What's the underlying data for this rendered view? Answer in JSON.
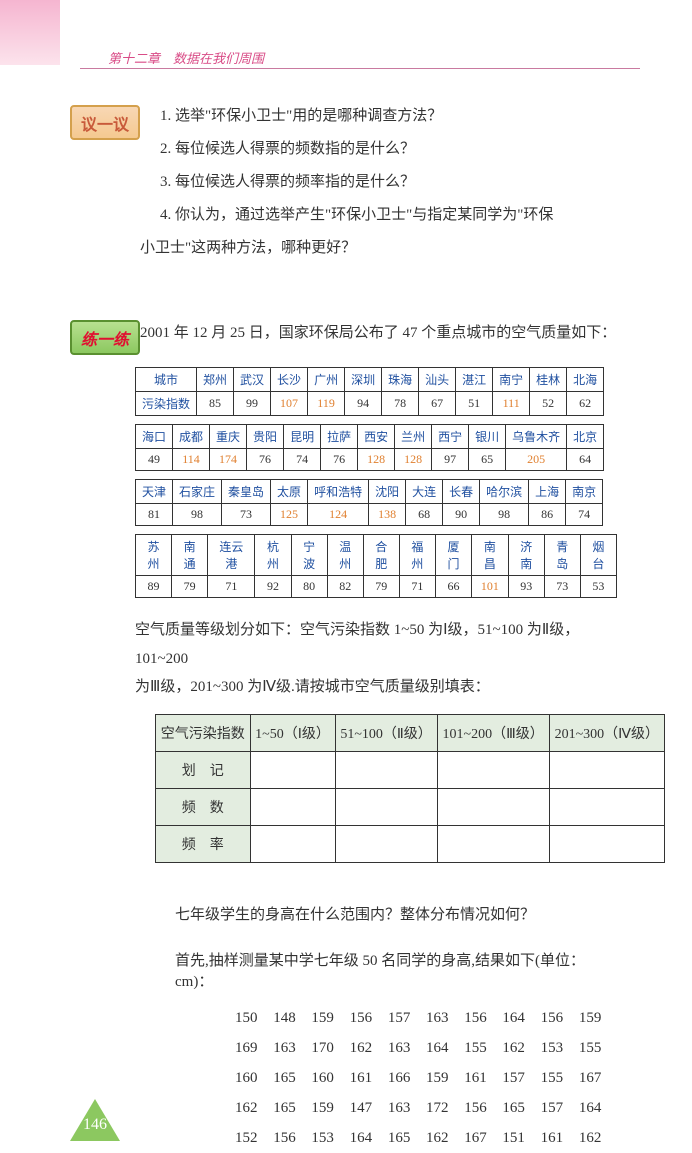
{
  "header": {
    "chapter": "第十二章　数据在我们周围"
  },
  "badges": {
    "discuss": "议一议",
    "practice": "练一练"
  },
  "questions": {
    "q1": "1. 选举\"环保小卫士\"用的是哪种调查方法？",
    "q2": "2. 每位候选人得票的频数指的是什么？",
    "q3": "3. 每位候选人得票的频率指的是什么？",
    "q4a": "4. 你认为，通过选举产生\"环保小卫士\"与指定某同学为\"环保",
    "q4b": "小卫士\"这两种方法，哪种更好？"
  },
  "intro": "2001 年 12 月 25 日，国家环保局公布了 47 个重点城市的空气质量如下：",
  "row_labels": {
    "city": "城市",
    "index": "污染指数"
  },
  "table1": {
    "cities": [
      "郑州",
      "武汉",
      "长沙",
      "广州",
      "深圳",
      "珠海",
      "汕头",
      "湛江",
      "南宁",
      "桂林",
      "北海"
    ],
    "values": [
      "85",
      "99",
      "107",
      "119",
      "94",
      "78",
      "67",
      "51",
      "111",
      "52",
      "62"
    ]
  },
  "table2": {
    "cities": [
      "海口",
      "成都",
      "重庆",
      "贵阳",
      "昆明",
      "拉萨",
      "西安",
      "兰州",
      "西宁",
      "银川",
      "乌鲁木齐",
      "北京"
    ],
    "values": [
      "49",
      "114",
      "174",
      "76",
      "74",
      "76",
      "128",
      "128",
      "97",
      "65",
      "205",
      "64"
    ]
  },
  "table3": {
    "cities": [
      "天津",
      "石家庄",
      "秦皇岛",
      "太原",
      "呼和浩特",
      "沈阳",
      "大连",
      "长春",
      "哈尔滨",
      "上海",
      "南京"
    ],
    "values": [
      "81",
      "98",
      "73",
      "125",
      "124",
      "138",
      "68",
      "90",
      "98",
      "86",
      "74"
    ]
  },
  "table4": {
    "cities": [
      "苏州",
      "南通",
      "连云港",
      "杭州",
      "宁波",
      "温州",
      "合肥",
      "福州",
      "厦门",
      "南昌",
      "济南",
      "青岛",
      "烟台"
    ],
    "values": [
      "89",
      "79",
      "71",
      "92",
      "80",
      "82",
      "79",
      "71",
      "66",
      "101",
      "93",
      "73",
      "53"
    ]
  },
  "orange_values": [
    "107",
    "119",
    "111",
    "114",
    "174",
    "128",
    "128",
    "205",
    "125",
    "124",
    "138",
    "101"
  ],
  "level_text1": "空气质量等级划分如下：空气污染指数 1~50 为Ⅰ级，51~100 为Ⅱ级，101~200",
  "level_text2": "为Ⅲ级，201~300 为Ⅳ级.请按城市空气质量级别填表：",
  "level_table": {
    "headers": [
      "空气污染指数",
      "1~50（Ⅰ级）",
      "51~100（Ⅱ级）",
      "101~200（Ⅲ级）",
      "201~300（Ⅳ级）"
    ],
    "rows": [
      "划　记",
      "频　数",
      "频　率"
    ]
  },
  "section_q": "七年级学生的身高在什么范围内？整体分布情况如何？",
  "height_intro": "首先,抽样测量某中学七年级 50 名同学的身高,结果如下(单位：cm)：",
  "heights": [
    [
      "150",
      "148",
      "159",
      "156",
      "157",
      "163",
      "156",
      "164",
      "156",
      "159"
    ],
    [
      "169",
      "163",
      "170",
      "162",
      "163",
      "164",
      "155",
      "162",
      "153",
      "155"
    ],
    [
      "160",
      "165",
      "160",
      "161",
      "166",
      "159",
      "161",
      "157",
      "155",
      "167"
    ],
    [
      "162",
      "165",
      "159",
      "147",
      "163",
      "172",
      "156",
      "165",
      "157",
      "164"
    ],
    [
      "152",
      "156",
      "153",
      "164",
      "165",
      "162",
      "167",
      "151",
      "161",
      "162"
    ]
  ],
  "page_number": "146"
}
